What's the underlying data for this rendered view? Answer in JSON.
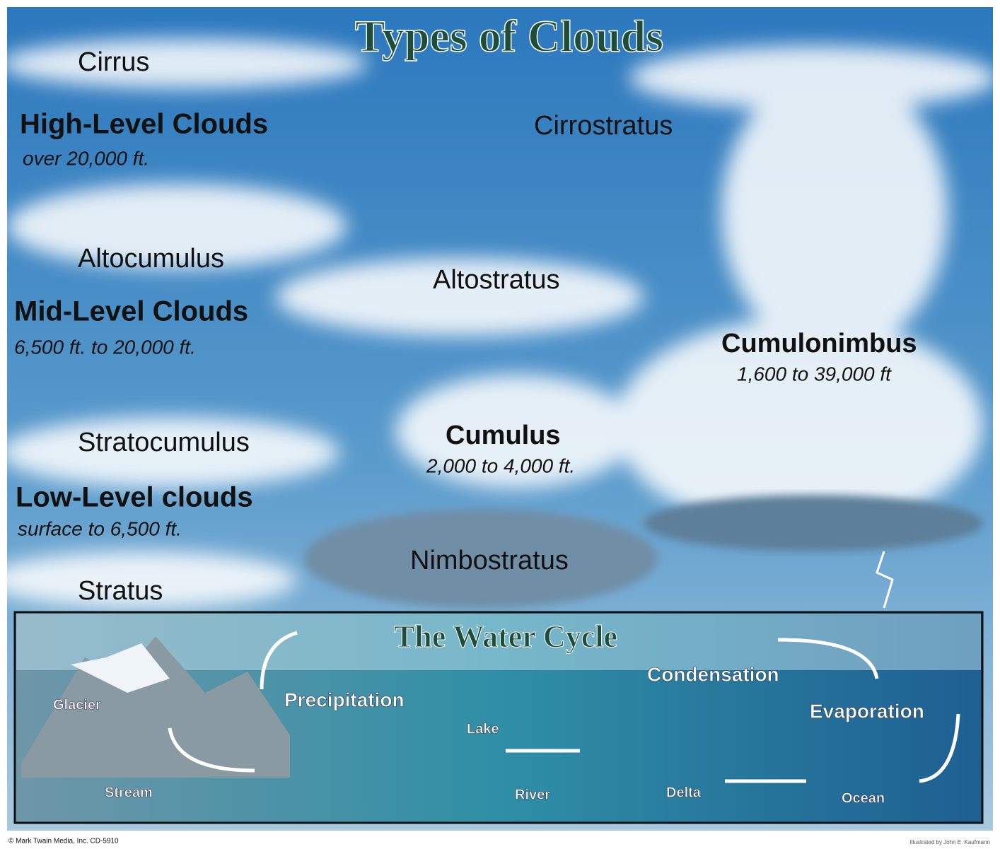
{
  "title": "Types of Clouds",
  "levels": [
    {
      "label": "High-Level Clouds",
      "range": "over 20,000 ft."
    },
    {
      "label": "Mid-Level Clouds",
      "range": "6,500 ft. to 20,000 ft."
    },
    {
      "label": "Low-Level clouds",
      "range": "surface to 6,500 ft."
    }
  ],
  "clouds": [
    {
      "name": "Cirrus"
    },
    {
      "name": "Cirrostratus"
    },
    {
      "name": "Altocumulus"
    },
    {
      "name": "Altostratus"
    },
    {
      "name": "Cumulonimbus",
      "range": "1,600 to 39,000 ft"
    },
    {
      "name": "Stratocumulus"
    },
    {
      "name": "Cumulus",
      "range": "2,000 to 4,000 ft."
    },
    {
      "name": "Nimbostratus"
    },
    {
      "name": "Stratus"
    }
  ],
  "water_cycle": {
    "title": "The Water Cycle",
    "labels": [
      "Glacier",
      "Precipitation",
      "Condensation",
      "Evaporation",
      "Lake",
      "Stream",
      "River",
      "Delta",
      "Ocean"
    ]
  },
  "footer": {
    "credit": "© Mark Twain Media, Inc. CD-5910",
    "illustrator": "Illustrated by John E. Kaufmann"
  }
}
